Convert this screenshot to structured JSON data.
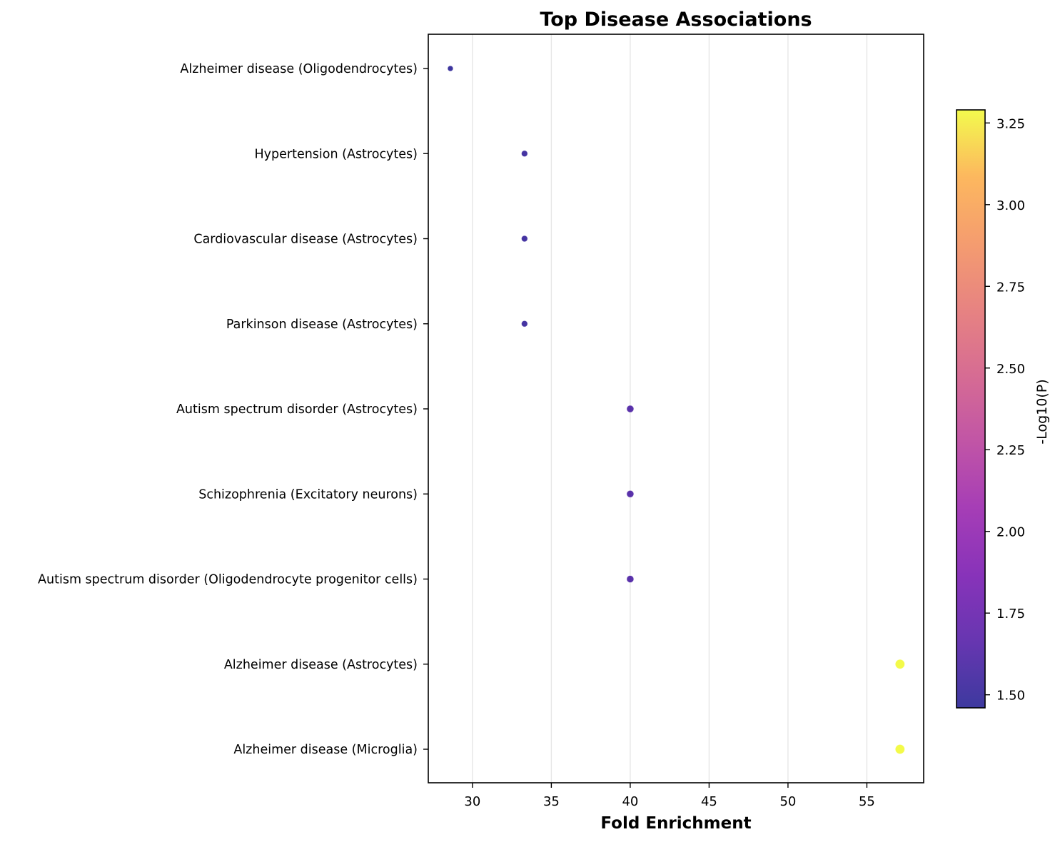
{
  "chart_data": {
    "type": "scatter",
    "title": "Top Disease Associations",
    "xlabel": "Fold Enrichment",
    "ylabel": "",
    "xlim": [
      27.2,
      58.6
    ],
    "xticks": [
      30,
      35,
      40,
      45,
      50,
      55
    ],
    "grid": "vertical",
    "colormap": "plasma",
    "colorbar": {
      "label": "-Log10(P)",
      "range": [
        1.46,
        3.29
      ],
      "ticks": [
        1.5,
        1.75,
        2.0,
        2.25,
        2.5,
        2.75,
        3.0,
        3.25
      ],
      "tick_labels": [
        "1.50",
        "1.75",
        "2.00",
        "2.25",
        "2.50",
        "2.75",
        "3.00",
        "3.25"
      ]
    },
    "categories": [
      "Alzheimer disease (Oligodendrocytes)",
      "Hypertension (Astrocytes)",
      "Cardiovascular disease (Astrocytes)",
      "Parkinson disease (Astrocytes)",
      "Autism spectrum disorder (Astrocytes)",
      "Schizophrenia (Excitatory neurons)",
      "Autism spectrum disorder (Oligodendrocyte progenitor cells)",
      "Alzheimer disease (Astrocytes)",
      "Alzheimer disease (Microglia)"
    ],
    "points": [
      {
        "category": "Alzheimer disease (Oligodendrocytes)",
        "x": 28.6,
        "neglog10p": 1.48
      },
      {
        "category": "Hypertension (Astrocytes)",
        "x": 33.3,
        "neglog10p": 1.52
      },
      {
        "category": "Cardiovascular disease (Astrocytes)",
        "x": 33.3,
        "neglog10p": 1.52
      },
      {
        "category": "Parkinson disease (Astrocytes)",
        "x": 33.3,
        "neglog10p": 1.52
      },
      {
        "category": "Autism spectrum disorder (Astrocytes)",
        "x": 40.0,
        "neglog10p": 1.62
      },
      {
        "category": "Schizophrenia (Excitatory neurons)",
        "x": 40.0,
        "neglog10p": 1.62
      },
      {
        "category": "Autism spectrum disorder (Oligodendrocyte progenitor cells)",
        "x": 40.0,
        "neglog10p": 1.62
      },
      {
        "category": "Alzheimer disease (Astrocytes)",
        "x": 57.1,
        "neglog10p": 3.29
      },
      {
        "category": "Alzheimer disease (Microglia)",
        "x": 57.1,
        "neglog10p": 3.29
      }
    ]
  }
}
